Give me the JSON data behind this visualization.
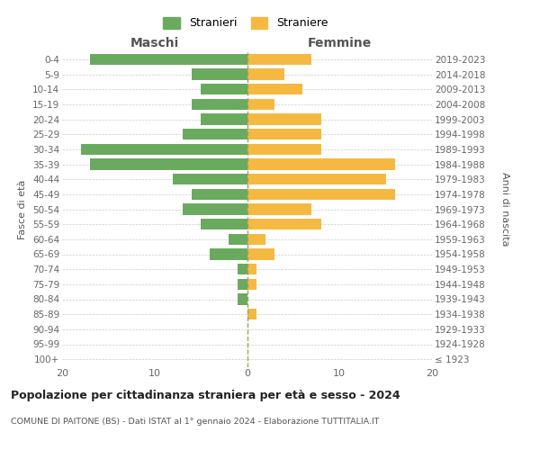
{
  "age_groups": [
    "100+",
    "95-99",
    "90-94",
    "85-89",
    "80-84",
    "75-79",
    "70-74",
    "65-69",
    "60-64",
    "55-59",
    "50-54",
    "45-49",
    "40-44",
    "35-39",
    "30-34",
    "25-29",
    "20-24",
    "15-19",
    "10-14",
    "5-9",
    "0-4"
  ],
  "birth_years": [
    "≤ 1923",
    "1924-1928",
    "1929-1933",
    "1934-1938",
    "1939-1943",
    "1944-1948",
    "1949-1953",
    "1954-1958",
    "1959-1963",
    "1964-1968",
    "1969-1973",
    "1974-1978",
    "1979-1983",
    "1984-1988",
    "1989-1993",
    "1994-1998",
    "1999-2003",
    "2004-2008",
    "2009-2013",
    "2014-2018",
    "2019-2023"
  ],
  "males": [
    0,
    0,
    0,
    0,
    1,
    1,
    1,
    4,
    2,
    5,
    7,
    6,
    8,
    17,
    18,
    7,
    5,
    6,
    5,
    6,
    17
  ],
  "females": [
    0,
    0,
    0,
    1,
    0,
    1,
    1,
    3,
    2,
    8,
    7,
    16,
    15,
    16,
    8,
    8,
    8,
    3,
    6,
    4,
    7
  ],
  "male_color": "#6aaa5e",
  "female_color": "#f5b942",
  "grid_color": "#cccccc",
  "center_line_color": "#a0a060",
  "title": "Popolazione per cittadinanza straniera per età e sesso - 2024",
  "subtitle": "COMUNE DI PAITONE (BS) - Dati ISTAT al 1° gennaio 2024 - Elaborazione TUTTITALIA.IT",
  "header_left": "Maschi",
  "header_right": "Femmine",
  "ylabel_left": "Fasce di età",
  "ylabel_right": "Anni di nascita",
  "legend_male": "Stranieri",
  "legend_female": "Straniere",
  "xlim": 20
}
